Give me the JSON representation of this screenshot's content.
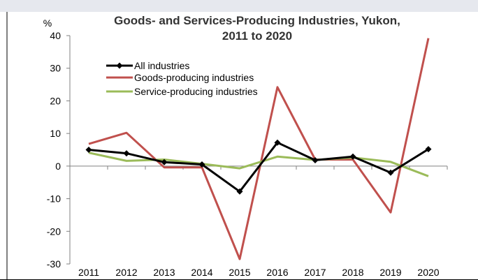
{
  "chart_data": {
    "type": "line",
    "title": "Goods- and Services-Producing Industries, Yukon,",
    "title_line2": "2011 to 2020",
    "ylabel": "%",
    "ylim": [
      -30,
      40
    ],
    "y_ticks": [
      "40",
      "30",
      "20",
      "10",
      "0",
      "-10",
      "-20",
      "-30"
    ],
    "y_tick_values": [
      40,
      30,
      20,
      10,
      0,
      -10,
      -20,
      -30
    ],
    "categories": [
      "2011",
      "2012",
      "2013",
      "2014",
      "2015",
      "2016",
      "2017",
      "2018",
      "2019",
      "2020"
    ],
    "grid": false,
    "legend_position": "top-left",
    "series": [
      {
        "name": "All industries",
        "color": "#000000",
        "marker": "diamond",
        "values": [
          5.0,
          3.9,
          1.2,
          0.5,
          -7.8,
          7.2,
          1.8,
          2.9,
          -2.0,
          5.2
        ]
      },
      {
        "name": "Goods-producing industries",
        "color": "#c0504d",
        "marker": "none",
        "values": [
          6.8,
          10.2,
          -0.4,
          -0.4,
          -28.5,
          24.2,
          2.0,
          2.0,
          -14.2,
          39.2
        ]
      },
      {
        "name": "Service-producing industries",
        "color": "#9bbb59",
        "marker": "none",
        "values": [
          4.1,
          1.6,
          2.0,
          0.7,
          -0.7,
          2.9,
          1.9,
          2.6,
          1.3,
          -3.1
        ]
      }
    ]
  }
}
